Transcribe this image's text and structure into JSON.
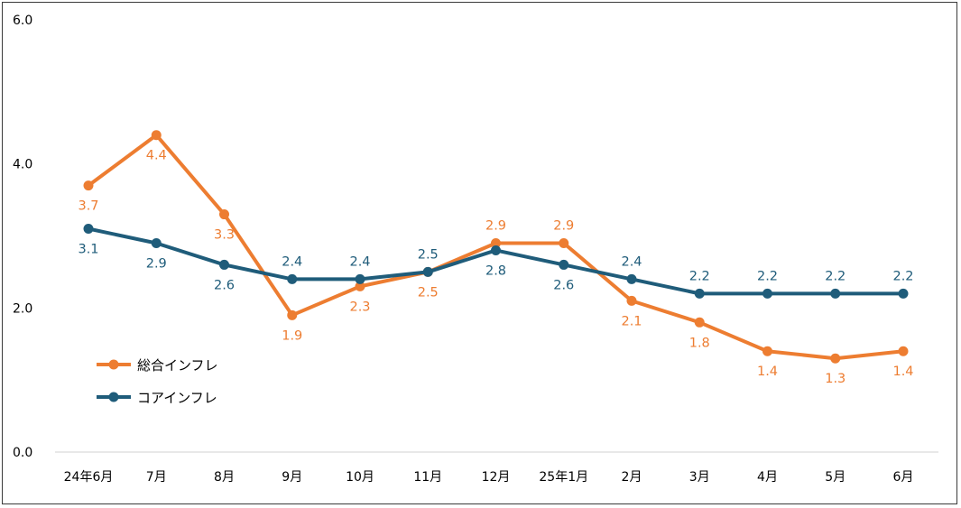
{
  "chart_data": {
    "type": "line",
    "title": "",
    "xlabel": "",
    "ylabel": "",
    "ylim": [
      0,
      6
    ],
    "yticks": [
      "0.0",
      "2.0",
      "4.0",
      "6.0"
    ],
    "grid": false,
    "legend_position": "left",
    "categories": [
      "24年6月",
      "7月",
      "8月",
      "9月",
      "10月",
      "11月",
      "12月",
      "25年1月",
      "2月",
      "3月",
      "4月",
      "5月",
      "6月"
    ],
    "series": [
      {
        "name": "総合インフレ",
        "color": "#ED7D31",
        "values": [
          3.7,
          4.4,
          3.3,
          1.9,
          2.3,
          2.5,
          2.9,
          2.9,
          2.1,
          1.8,
          1.4,
          1.3,
          1.4
        ],
        "labels": [
          "3.7",
          "4.4",
          "3.3",
          "1.9",
          "2.3",
          "2.5",
          "2.9",
          "2.9",
          "2.1",
          "1.8",
          "1.4",
          "1.3",
          "1.4"
        ]
      },
      {
        "name": "コアインフレ",
        "color": "#1F5C7A",
        "values": [
          3.1,
          2.9,
          2.6,
          2.4,
          2.4,
          2.5,
          2.8,
          2.6,
          2.4,
          2.2,
          2.2,
          2.2,
          2.2
        ],
        "labels": [
          "3.1",
          "2.9",
          "2.6",
          "2.4",
          "2.4",
          "2.5",
          "2.8",
          "2.6",
          "2.4",
          "2.2",
          "2.2",
          "2.2",
          "2.2"
        ]
      }
    ]
  }
}
